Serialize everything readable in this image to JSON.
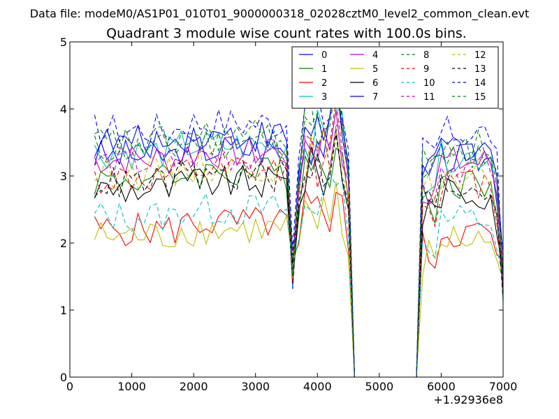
{
  "chart_data": {
    "type": "line",
    "suptitle": "Data file: modeM0/AS1P01_010T01_9000000318_02028cztM0_level2_common_clean.evt",
    "title": "Quadrant 3 module wise count rates with 100.0s bins.",
    "xlabel": "",
    "ylabel": "",
    "x_offset_label": "+1.92936e8",
    "xlim": [
      0,
      7000
    ],
    "ylim": [
      0,
      5
    ],
    "xticks": [
      0,
      1000,
      2000,
      3000,
      4000,
      5000,
      6000,
      7000
    ],
    "xtick_labels": [
      "0",
      "1000",
      "2000",
      "3000",
      "4000",
      "5000",
      "6000",
      "7000"
    ],
    "yticks": [
      0,
      1,
      2,
      3,
      4,
      5
    ],
    "ytick_labels": [
      "0",
      "1",
      "2",
      "3",
      "4",
      "5"
    ],
    "grid": false,
    "legend_position": "top-right",
    "series": [
      {
        "name": "0",
        "color": "#0000ff",
        "dash": "solid",
        "base": 3.3
      },
      {
        "name": "1",
        "color": "#008000",
        "dash": "solid",
        "base": 2.95
      },
      {
        "name": "2",
        "color": "#ff0000",
        "dash": "solid",
        "base": 2.2
      },
      {
        "name": "3",
        "color": "#00bfbf",
        "dash": "solid",
        "base": 3.35
      },
      {
        "name": "4",
        "color": "#bf00bf",
        "dash": "solid",
        "base": 3.25
      },
      {
        "name": "5",
        "color": "#bfbf00",
        "dash": "solid",
        "base": 2.1
      },
      {
        "name": "6",
        "color": "#000000",
        "dash": "solid",
        "base": 2.8
      },
      {
        "name": "7",
        "color": "#0000ff",
        "dash": "solid",
        "base": 3.5
      },
      {
        "name": "8",
        "color": "#008000",
        "dash": "dashed",
        "base": 3.4
      },
      {
        "name": "9",
        "color": "#ff0000",
        "dash": "dashed",
        "base": 2.95
      },
      {
        "name": "10",
        "color": "#00bfbf",
        "dash": "dashed",
        "base": 2.4
      },
      {
        "name": "11",
        "color": "#bf00bf",
        "dash": "dashed",
        "base": 3.2
      },
      {
        "name": "12",
        "color": "#bfbf00",
        "dash": "dashed",
        "base": 3.05
      },
      {
        "name": "13",
        "color": "#000000",
        "dash": "dashed",
        "base": 2.9
      },
      {
        "name": "14",
        "color": "#0000ff",
        "dash": "dashed",
        "base": 3.7
      },
      {
        "name": "15",
        "color": "#008000",
        "dash": "dashed",
        "base": 3.5
      }
    ]
  }
}
